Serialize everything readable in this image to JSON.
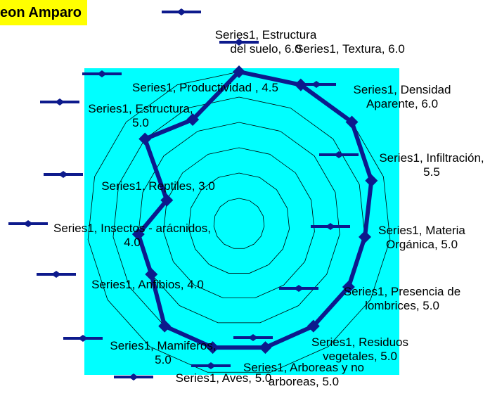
{
  "chart_data": {
    "type": "radar",
    "title": "eon Amparo",
    "categories": [
      "Estructura del suelo",
      "Textura",
      "Densidad Aparente",
      "Infiltración",
      "Materia Orgánica",
      "Presencia de lombrices",
      "Residuos vegetales",
      "Arboreas y no arboreas",
      "Aves",
      "Mamiferos",
      "Anfibios",
      "Insectos - arácnidos",
      "Reptiles",
      "Estructura",
      "Productividad"
    ],
    "series": [
      {
        "name": "Series1",
        "color": "#0d1a8c",
        "values": [
          6,
          6,
          6,
          5.5,
          5,
          5,
          5,
          5,
          5,
          5,
          4,
          4,
          3,
          5,
          4.5
        ],
        "value_labels": [
          "Series1, Estructura del suelo, 6.0",
          "Series1, Textura, 6.0",
          "Series1, Densidad Aparente, 6.0",
          "Series1, Infiltración, 5.5",
          "Series1, Materia Orgánica, 5.0",
          "Series1, Presencia de lombrices, 5.0",
          "Series1, Residuos vegetales, 5.0",
          "Series1, Arboreas y no arboreas, 5.0",
          "Series1, Aves, 5.0",
          "Series1, Mamiferos, 5.0",
          "Series1, Anfibios, 4.0",
          "Series1, Insectos - arácnidos, 4.0",
          "Series1, Reptiles, 3.0",
          "Series1, Estructura, 5.0",
          "Series1, Productividad , 4.5"
        ]
      }
    ],
    "ylim": [
      0,
      6
    ],
    "yticks": [
      0,
      1,
      2,
      3,
      4,
      5,
      6
    ],
    "grid": true,
    "background": "#00ffff"
  }
}
